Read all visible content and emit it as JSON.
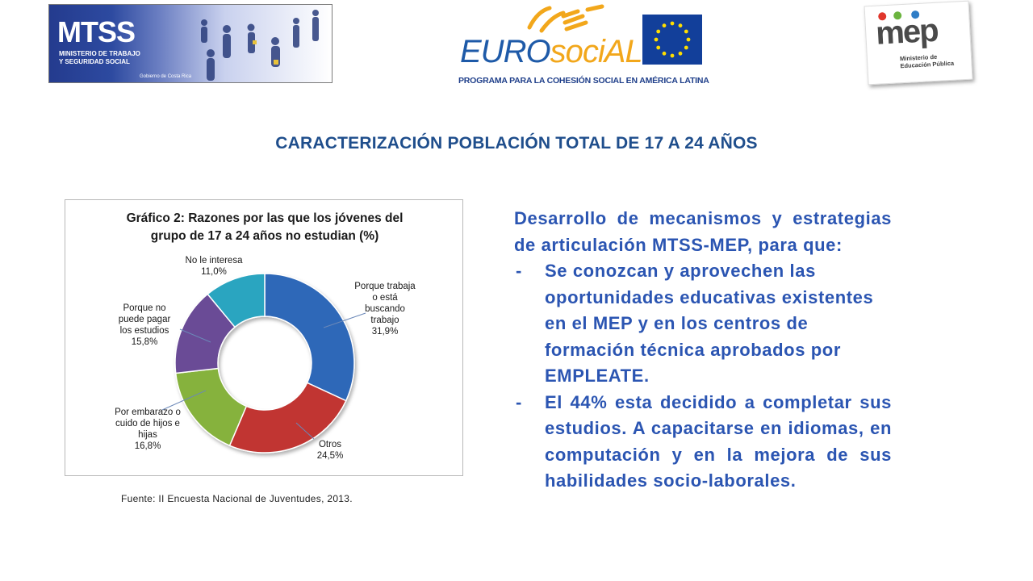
{
  "logos": {
    "mtss": {
      "mark": "MTSS",
      "subtitle_line1": "MINISTERIO DE TRABAJO",
      "subtitle_line2": "Y SEGURIDAD SOCIAL",
      "gov": "Gobierno de Costa Rica"
    },
    "eurosocial": {
      "title_a": "EURO",
      "title_b": "sociAL",
      "subtitle": "PROGRAMA PARA LA COHESIÓN SOCIAL EN AMÉRICA LATINA"
    },
    "mep": {
      "word": "mep",
      "subtitle_line1": "Ministerio de",
      "subtitle_line2": "Educación Pública"
    }
  },
  "title": "CARACTERIZACIÓN POBLACIÓN TOTAL DE 17 A 24 AÑOS",
  "chart_data": {
    "type": "pie",
    "variant": "donut",
    "title_line1": "Gráfico 2: Razones por las que los jóvenes del",
    "title_line2": "grupo de 17 a 24 años no estudian (%)",
    "slices": [
      {
        "label_lines": [
          "Porque trabaja",
          "o está",
          "buscando",
          "trabajo"
        ],
        "value_text": "31,9%",
        "value": 31.9,
        "color": "#2f67b8"
      },
      {
        "label_lines": [
          "Otros"
        ],
        "value_text": "24,5%",
        "value": 24.5,
        "color": "#c13633"
      },
      {
        "label_lines": [
          "Por embarazo o",
          "cuido de hijos e",
          "hijas"
        ],
        "value_text": "16,8%",
        "value": 16.8,
        "color": "#86b23c"
      },
      {
        "label_lines": [
          "Porque no",
          "puede pagar",
          "los estudios"
        ],
        "value_text": "15,8%",
        "value": 15.8,
        "color": "#6a4b96"
      },
      {
        "label_lines": [
          "No le interesa"
        ],
        "value_text": "11,0%",
        "value": 11.0,
        "color": "#2aa5c0"
      }
    ],
    "legend": "none"
  },
  "source": "Fuente: II Encuesta Nacional de Juventudes, 2013.",
  "text": {
    "intro": "Desarrollo de mecanismos y estrategias de articulación MTSS-MEP, para que:",
    "bullets": [
      "Se conozcan y aprovechen las oportunidades educativas existentes en el MEP y en los centros de formación técnica aprobados por EMPLEATE.",
      "El 44% esta decidido a completar sus estudios. A capacitarse en idiomas, en computación y en la mejora de sus habilidades socio-laborales."
    ],
    "dash": "-"
  }
}
